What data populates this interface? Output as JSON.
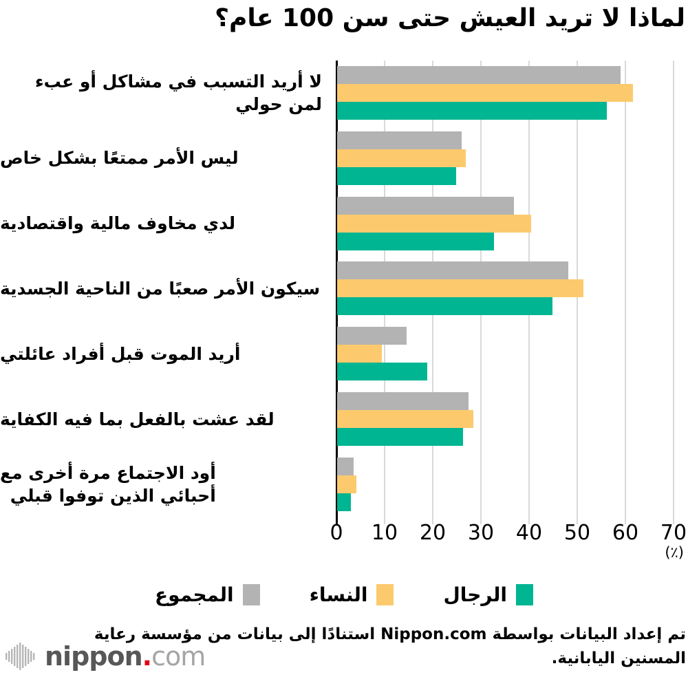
{
  "title": "لماذا لا تريد العيش حتى سن 100 عام؟",
  "chart_data": {
    "type": "bar",
    "orientation": "horizontal",
    "title": "لماذا لا تريد العيش حتى سن 100 عام؟",
    "unit_label": "(٪)",
    "xlim": [
      0,
      70
    ],
    "x_ticks": [
      0,
      10,
      20,
      30,
      40,
      50,
      60,
      70
    ],
    "grid": true,
    "legend_position": "bottom",
    "categories": [
      "لا أريد التسبب في مشاكل أو عبء لمن حولي",
      "ليس الأمر ممتعًا بشكل خاص",
      "لدي مخاوف مالية واقتصادية",
      "سيكون الأمر صعبًا من الناحية الجسدية",
      "أريد الموت قبل أفراد عائلتي",
      "لقد عشت بالفعل بما فيه الكفاية",
      "أود الاجتماع مرة أخرى مع\nأحبائي الذين توفوا قبلي"
    ],
    "series": [
      {
        "name": "المجموع",
        "color": "#b3b3b3",
        "values": [
          58.9,
          25.9,
          36.7,
          48.0,
          14.4,
          27.3,
          3.4
        ]
      },
      {
        "name": "النساء",
        "color": "#fcca6d",
        "values": [
          61.4,
          26.7,
          40.3,
          51.1,
          9.3,
          28.3,
          4.0
        ]
      },
      {
        "name": "الرجال",
        "color": "#00b592",
        "values": [
          56.0,
          24.7,
          32.6,
          44.7,
          18.7,
          26.1,
          2.9
        ]
      }
    ]
  },
  "legend": {
    "items": [
      {
        "label": "الرجال",
        "color": "#00b592"
      },
      {
        "label": "النساء",
        "color": "#fcca6d"
      },
      {
        "label": "المجموع",
        "color": "#b3b3b3"
      }
    ]
  },
  "footer": {
    "lines": [
      "تم إعداد البيانات بواسطة Nippon.com استنادًا إلى بيانات من مؤسسة رعاية",
      "المسنين اليابانية."
    ]
  },
  "logo": {
    "brand": "nippon",
    "dot": ".",
    "tld": "com",
    "dot_color": "#e60012"
  }
}
